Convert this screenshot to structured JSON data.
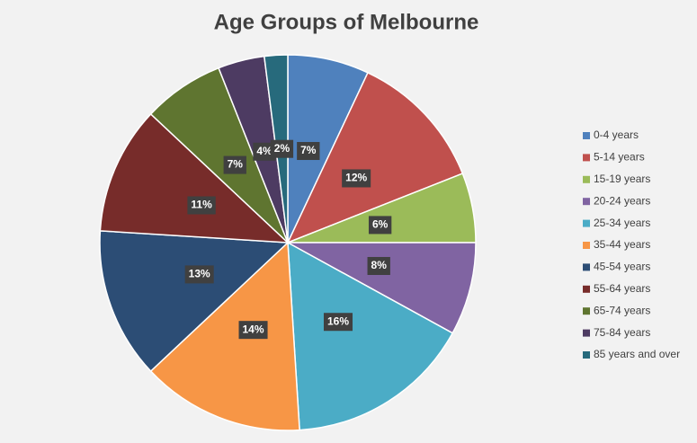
{
  "chart_data": {
    "type": "pie",
    "title": "Age Groups of Melbourne",
    "categories": [
      "0-4 years",
      "5-14 years",
      "15-19 years",
      "20-24 years",
      "25-34 years",
      "35-44 years",
      "45-54 years",
      "55-64 years",
      "65-74 years",
      "75-84 years",
      "85 years and over"
    ],
    "values": [
      7,
      12,
      6,
      8,
      16,
      14,
      13,
      11,
      7,
      4,
      2
    ],
    "value_labels": [
      "7%",
      "12%",
      "6%",
      "8%",
      "16%",
      "14%",
      "13%",
      "11%",
      "7%",
      "4%",
      "2%"
    ],
    "colors": [
      "#4f81bd",
      "#c0504d",
      "#9bbb59",
      "#8064a2",
      "#4bacc6",
      "#f79646",
      "#2c4d75",
      "#772c2a",
      "#5f7530",
      "#4d3b62",
      "#276a7c"
    ],
    "legend": "right"
  }
}
